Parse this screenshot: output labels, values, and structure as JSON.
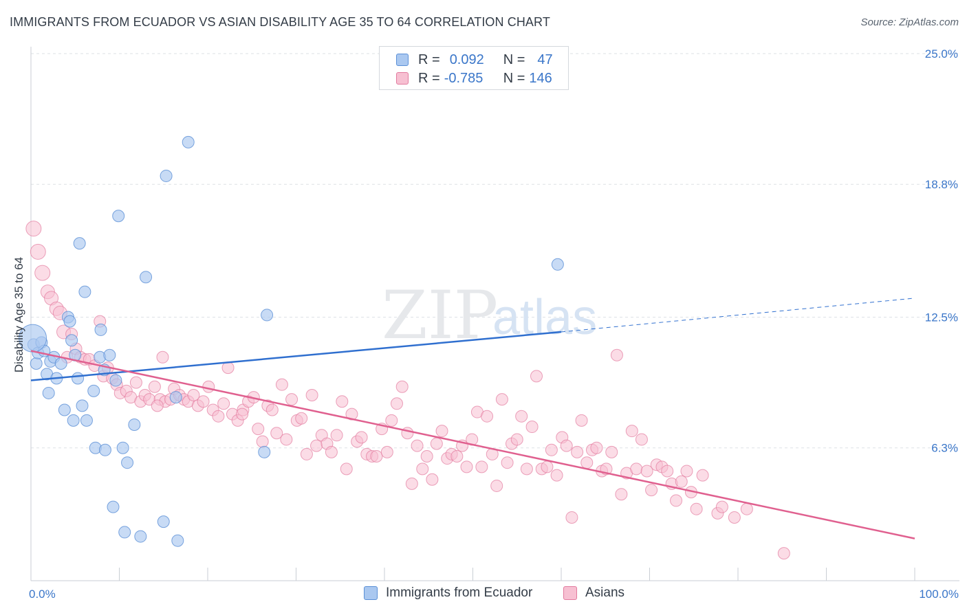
{
  "title": "IMMIGRANTS FROM ECUADOR VS ASIAN DISABILITY AGE 35 TO 64 CORRELATION CHART",
  "source": "Source: ZipAtlas.com",
  "watermark": {
    "zip": "ZIP",
    "atlas": "atlas"
  },
  "legend": {
    "r_label": "R =",
    "n_label": "N =",
    "series": [
      {
        "name": "Immigrants from Ecuador",
        "r": "0.092",
        "n": "47",
        "fill": "#aac8f0",
        "stroke": "#5a8fd6"
      },
      {
        "name": "Asians",
        "r": "-0.785",
        "n": "146",
        "fill": "#f7c0d2",
        "stroke": "#e27a9e"
      }
    ]
  },
  "colors": {
    "blue_line": "#2f6fcf",
    "pink_line": "#e0608f",
    "tick_label": "#3a76c9",
    "grid": "#dde1e6"
  },
  "chart_data": {
    "type": "scatter",
    "title": "IMMIGRANTS FROM ECUADOR VS ASIAN DISABILITY AGE 35 TO 64 CORRELATION CHART",
    "xlabel": "",
    "ylabel": "Disability Age 35 to 64",
    "xlim": [
      0,
      100
    ],
    "ylim": [
      0,
      25
    ],
    "x_tick_labels": [
      "0.0%",
      "100.0%"
    ],
    "y_ticks": [
      6.3,
      12.5,
      18.8,
      25.0
    ],
    "y_tick_labels": [
      "6.3%",
      "12.5%",
      "18.8%",
      "25.0%"
    ],
    "series": [
      {
        "name": "Immigrants from Ecuador",
        "points": [
          [
            0.3,
            11.2
          ],
          [
            0.6,
            10.3
          ],
          [
            0.8,
            10.8
          ],
          [
            1.2,
            11.3
          ],
          [
            1.5,
            10.9
          ],
          [
            1.8,
            9.8
          ],
          [
            2.0,
            8.9
          ],
          [
            2.2,
            10.4
          ],
          [
            2.6,
            10.6
          ],
          [
            2.9,
            9.6
          ],
          [
            3.4,
            10.3
          ],
          [
            3.8,
            8.1
          ],
          [
            4.2,
            12.5
          ],
          [
            4.4,
            12.3
          ],
          [
            4.6,
            11.4
          ],
          [
            4.8,
            7.6
          ],
          [
            5.0,
            10.7
          ],
          [
            5.3,
            9.6
          ],
          [
            5.5,
            16.0
          ],
          [
            5.8,
            8.3
          ],
          [
            6.1,
            13.7
          ],
          [
            6.3,
            7.6
          ],
          [
            7.1,
            9.0
          ],
          [
            7.3,
            6.3
          ],
          [
            7.8,
            10.6
          ],
          [
            7.9,
            11.9
          ],
          [
            8.3,
            10.0
          ],
          [
            8.4,
            6.2
          ],
          [
            8.9,
            10.7
          ],
          [
            9.3,
            3.5
          ],
          [
            9.6,
            9.5
          ],
          [
            9.9,
            17.3
          ],
          [
            10.4,
            6.3
          ],
          [
            10.6,
            2.3
          ],
          [
            10.9,
            5.6
          ],
          [
            11.7,
            7.4
          ],
          [
            12.4,
            2.1
          ],
          [
            13.0,
            14.4
          ],
          [
            15.0,
            2.8
          ],
          [
            15.3,
            19.2
          ],
          [
            16.4,
            8.7
          ],
          [
            16.6,
            1.9
          ],
          [
            17.8,
            20.8
          ],
          [
            26.4,
            6.1
          ],
          [
            26.7,
            12.6
          ],
          [
            59.6,
            15.0
          ],
          [
            0.2,
            11.5
          ]
        ]
      },
      {
        "name": "Asians",
        "points": [
          [
            0.3,
            16.7
          ],
          [
            0.8,
            15.6
          ],
          [
            1.3,
            14.6
          ],
          [
            1.9,
            13.7
          ],
          [
            2.3,
            13.4
          ],
          [
            2.9,
            12.9
          ],
          [
            3.3,
            12.7
          ],
          [
            3.7,
            11.8
          ],
          [
            4.1,
            10.6
          ],
          [
            4.6,
            11.7
          ],
          [
            5.1,
            11.0
          ],
          [
            5.6,
            10.6
          ],
          [
            6.1,
            10.5
          ],
          [
            6.6,
            10.5
          ],
          [
            7.2,
            10.2
          ],
          [
            7.8,
            12.3
          ],
          [
            8.2,
            9.7
          ],
          [
            8.7,
            10.1
          ],
          [
            9.2,
            9.6
          ],
          [
            9.7,
            9.3
          ],
          [
            10.1,
            8.9
          ],
          [
            10.8,
            9.0
          ],
          [
            11.3,
            8.7
          ],
          [
            11.9,
            9.4
          ],
          [
            12.4,
            8.5
          ],
          [
            12.9,
            8.8
          ],
          [
            13.4,
            8.6
          ],
          [
            14.0,
            9.2
          ],
          [
            14.6,
            8.6
          ],
          [
            14.9,
            10.6
          ],
          [
            15.2,
            8.5
          ],
          [
            15.8,
            8.6
          ],
          [
            16.2,
            9.1
          ],
          [
            16.8,
            8.8
          ],
          [
            17.3,
            8.6
          ],
          [
            17.8,
            8.5
          ],
          [
            18.4,
            8.8
          ],
          [
            18.9,
            8.3
          ],
          [
            19.5,
            8.5
          ],
          [
            20.1,
            9.2
          ],
          [
            20.6,
            8.1
          ],
          [
            21.2,
            7.8
          ],
          [
            21.8,
            8.4
          ],
          [
            22.3,
            10.1
          ],
          [
            22.8,
            7.9
          ],
          [
            23.4,
            7.6
          ],
          [
            24.0,
            8.1
          ],
          [
            24.6,
            8.5
          ],
          [
            25.2,
            8.7
          ],
          [
            25.7,
            7.2
          ],
          [
            26.2,
            6.6
          ],
          [
            26.8,
            8.3
          ],
          [
            27.3,
            8.1
          ],
          [
            27.8,
            7.0
          ],
          [
            28.4,
            9.3
          ],
          [
            28.9,
            6.7
          ],
          [
            29.5,
            8.6
          ],
          [
            30.1,
            7.6
          ],
          [
            30.6,
            7.7
          ],
          [
            31.2,
            6.0
          ],
          [
            31.8,
            8.8
          ],
          [
            32.3,
            6.4
          ],
          [
            32.9,
            6.9
          ],
          [
            33.5,
            6.5
          ],
          [
            34.0,
            6.1
          ],
          [
            34.6,
            6.9
          ],
          [
            35.2,
            8.5
          ],
          [
            35.7,
            5.3
          ],
          [
            36.3,
            7.9
          ],
          [
            36.9,
            6.6
          ],
          [
            37.4,
            6.8
          ],
          [
            38.0,
            6.0
          ],
          [
            38.6,
            5.9
          ],
          [
            39.1,
            5.9
          ],
          [
            39.7,
            7.2
          ],
          [
            40.3,
            6.1
          ],
          [
            40.8,
            7.6
          ],
          [
            41.4,
            8.4
          ],
          [
            42.0,
            9.2
          ],
          [
            42.6,
            7.0
          ],
          [
            43.1,
            4.6
          ],
          [
            43.7,
            6.4
          ],
          [
            44.3,
            5.3
          ],
          [
            44.8,
            5.9
          ],
          [
            45.4,
            4.8
          ],
          [
            45.9,
            6.5
          ],
          [
            46.5,
            7.1
          ],
          [
            47.1,
            5.8
          ],
          [
            47.6,
            6.0
          ],
          [
            48.2,
            5.9
          ],
          [
            48.8,
            6.4
          ],
          [
            49.3,
            5.4
          ],
          [
            49.9,
            6.7
          ],
          [
            50.5,
            8.0
          ],
          [
            51.0,
            5.4
          ],
          [
            51.6,
            7.8
          ],
          [
            52.2,
            6.0
          ],
          [
            52.7,
            4.5
          ],
          [
            53.3,
            8.6
          ],
          [
            53.9,
            5.6
          ],
          [
            54.4,
            6.5
          ],
          [
            55.0,
            6.7
          ],
          [
            55.5,
            7.8
          ],
          [
            56.1,
            5.3
          ],
          [
            56.7,
            7.3
          ],
          [
            57.2,
            9.7
          ],
          [
            57.8,
            5.3
          ],
          [
            58.4,
            5.4
          ],
          [
            58.9,
            6.2
          ],
          [
            59.5,
            5.0
          ],
          [
            60.1,
            6.8
          ],
          [
            60.6,
            6.4
          ],
          [
            61.2,
            3.0
          ],
          [
            61.8,
            6.1
          ],
          [
            62.3,
            7.6
          ],
          [
            62.9,
            5.6
          ],
          [
            63.5,
            6.2
          ],
          [
            64.0,
            6.3
          ],
          [
            64.6,
            5.2
          ],
          [
            65.1,
            5.3
          ],
          [
            65.7,
            6.1
          ],
          [
            66.3,
            10.7
          ],
          [
            66.8,
            4.1
          ],
          [
            67.4,
            5.1
          ],
          [
            68.0,
            7.1
          ],
          [
            68.5,
            5.3
          ],
          [
            69.1,
            6.7
          ],
          [
            69.7,
            5.2
          ],
          [
            70.2,
            4.3
          ],
          [
            70.8,
            5.5
          ],
          [
            71.4,
            5.4
          ],
          [
            72.0,
            5.2
          ],
          [
            72.5,
            4.6
          ],
          [
            73.0,
            3.8
          ],
          [
            73.6,
            4.7
          ],
          [
            74.2,
            5.2
          ],
          [
            74.7,
            4.2
          ],
          [
            75.3,
            3.4
          ],
          [
            76.0,
            5.0
          ],
          [
            77.7,
            3.2
          ],
          [
            78.2,
            3.5
          ],
          [
            79.6,
            3.0
          ],
          [
            81.0,
            3.4
          ],
          [
            85.2,
            1.3
          ],
          [
            14.3,
            8.3
          ],
          [
            23.9,
            7.9
          ]
        ]
      }
    ],
    "trend_lines": [
      {
        "series": "Immigrants from Ecuador",
        "from": [
          0,
          9.5
        ],
        "to": [
          60,
          11.8
        ],
        "dashed_extension_to": [
          100,
          13.4
        ]
      },
      {
        "series": "Asians",
        "from": [
          0,
          10.9
        ],
        "to": [
          100,
          2.0
        ]
      }
    ]
  }
}
